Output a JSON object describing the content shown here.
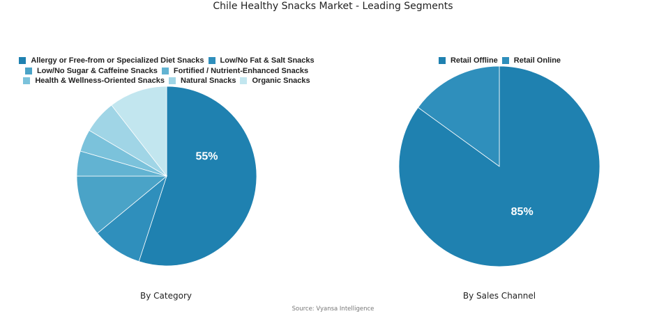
{
  "title": "Chile Healthy Snacks Market - Leading Segments",
  "source": "Source: Vyansa Intelligence",
  "chart_data": [
    {
      "type": "pie",
      "subtitle": "By Category",
      "label_text": "55%",
      "slices": [
        {
          "name": "Allergy or Free-from or Specialized Diet Snacks",
          "value": 55,
          "color": "#1f81b0"
        },
        {
          "name": "Low/No Fat & Salt Snacks",
          "value": 9,
          "color": "#2f8fbc"
        },
        {
          "name": "Low/No Sugar & Caffeine Snacks",
          "value": 11,
          "color": "#4aa3c7"
        },
        {
          "name": "Fortified / Nutrient-Enhanced Snacks",
          "value": 4.5,
          "color": "#62b3d2"
        },
        {
          "name": "Health & Wellness-Oriented Snacks",
          "value": 4,
          "color": "#7bc2db"
        },
        {
          "name": "Natural Snacks",
          "value": 6,
          "color": "#a0d5e6"
        },
        {
          "name": "Organic Snacks",
          "value": 10.5,
          "color": "#c2e6ef"
        }
      ]
    },
    {
      "type": "pie",
      "subtitle": "By Sales Channel",
      "label_text": "85%",
      "slices": [
        {
          "name": "Retail Offline",
          "value": 85,
          "color": "#1f81b0"
        },
        {
          "name": "Retail Online",
          "value": 15,
          "color": "#2f8fbc"
        }
      ]
    }
  ]
}
